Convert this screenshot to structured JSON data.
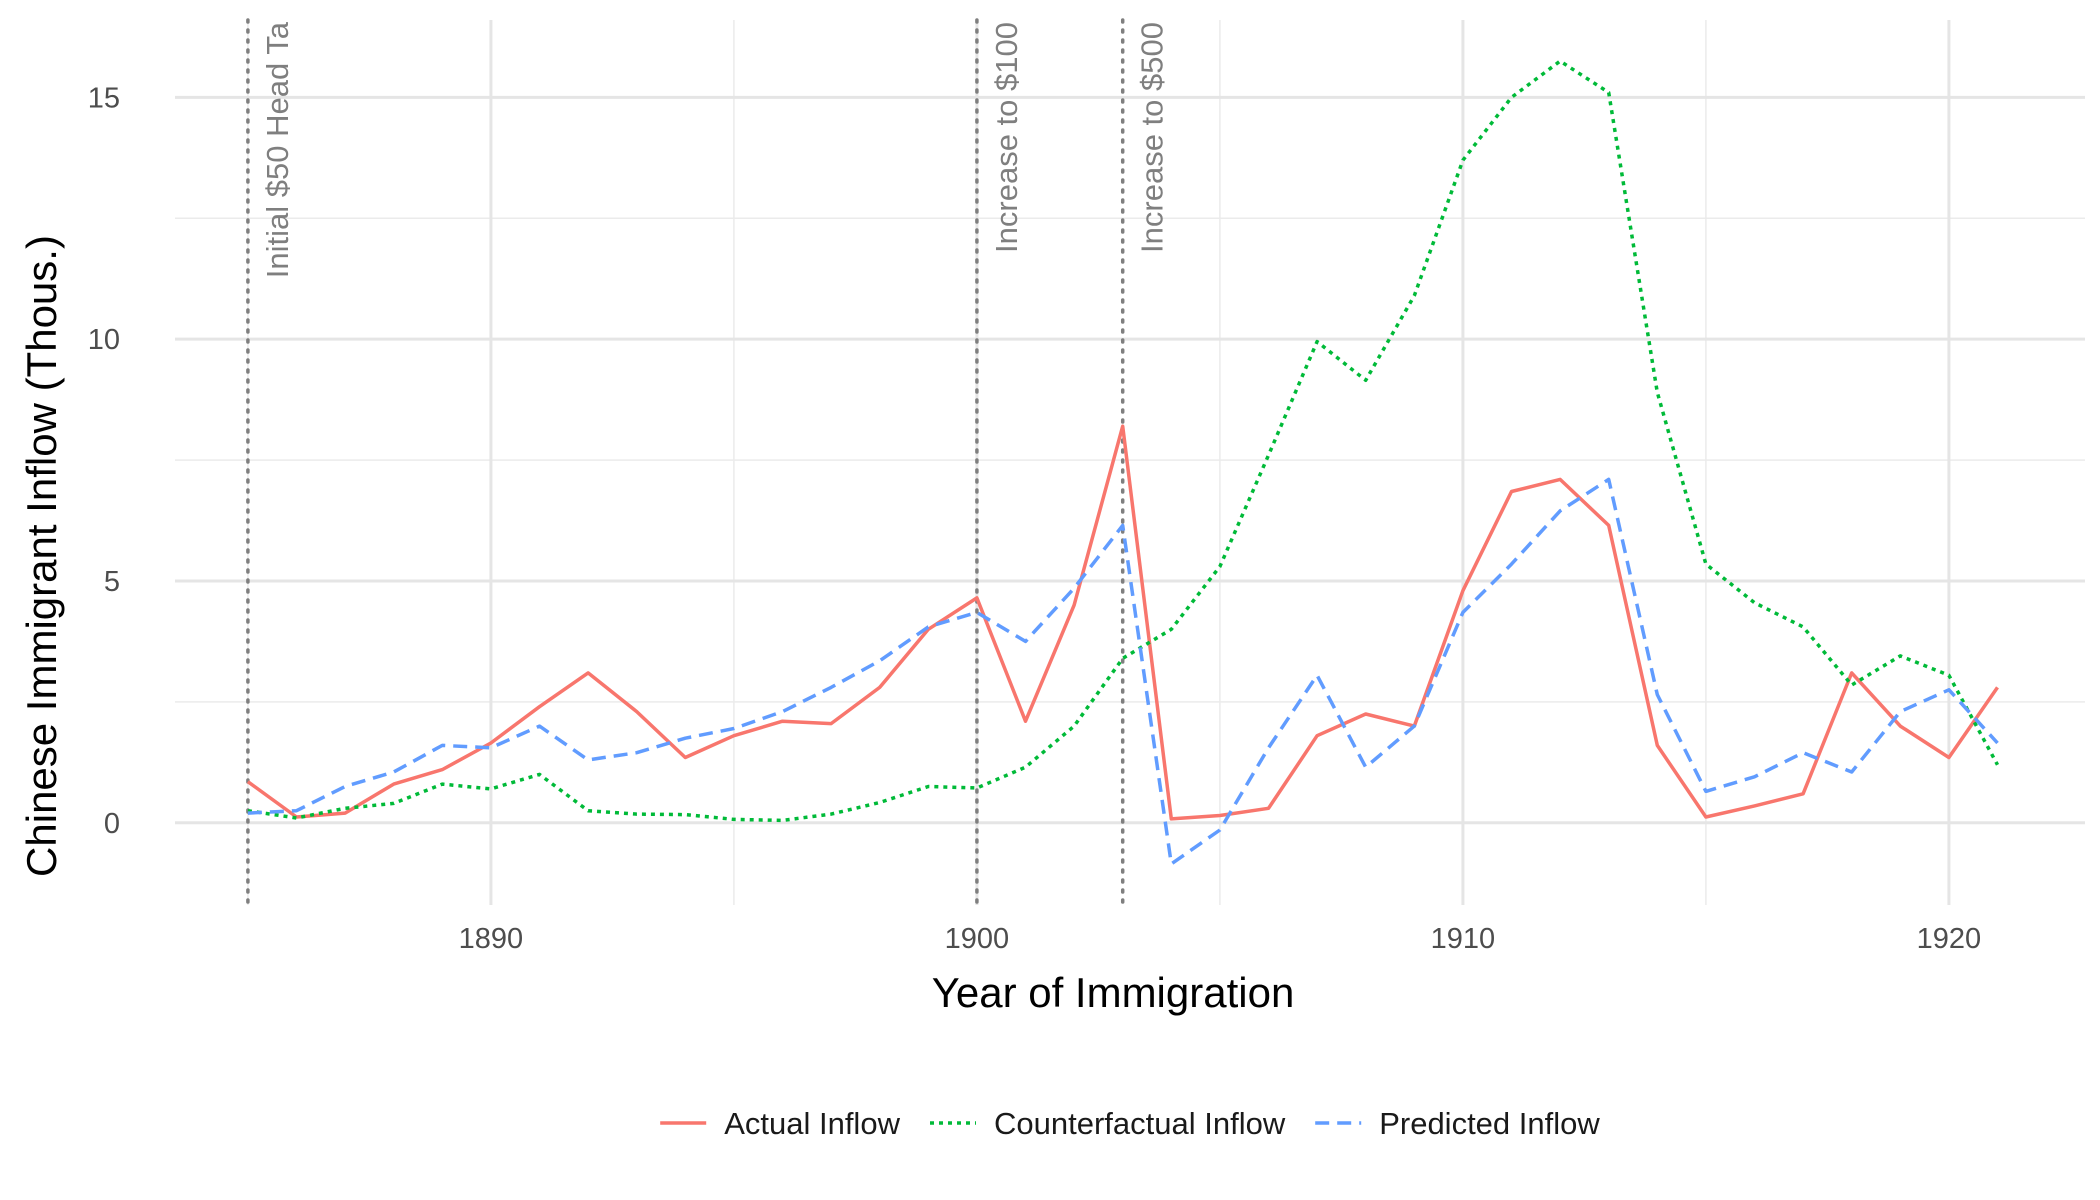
{
  "chart_data": {
    "type": "line",
    "title": "",
    "xlabel": "Year of Immigration",
    "ylabel": "Chinese Immigrant Inflow (Thous.)",
    "xlim": [
      1883.5,
      1922.8
    ],
    "ylim": [
      -1.7,
      16.6
    ],
    "x_ticks": [
      1890,
      1900,
      1910,
      1920
    ],
    "x_minor_ticks": [
      1885,
      1895,
      1905,
      1915
    ],
    "y_ticks": [
      0,
      5,
      10,
      15
    ],
    "y_minor_ticks": [
      2.5,
      7.5,
      12.5
    ],
    "grid": true,
    "legend_position": "bottom",
    "x": [
      1885,
      1886,
      1887,
      1888,
      1889,
      1890,
      1891,
      1892,
      1893,
      1894,
      1895,
      1896,
      1897,
      1898,
      1899,
      1900,
      1901,
      1902,
      1903,
      1904,
      1905,
      1906,
      1907,
      1908,
      1909,
      1910,
      1911,
      1912,
      1913,
      1914,
      1915,
      1916,
      1917,
      1918,
      1919,
      1920,
      1921
    ],
    "series": [
      {
        "name": "Actual Inflow",
        "color": "#F8766D",
        "dash": "solid",
        "values": [
          0.85,
          0.12,
          0.2,
          0.8,
          1.1,
          1.65,
          2.4,
          3.1,
          2.3,
          1.35,
          1.8,
          2.1,
          2.05,
          2.8,
          4.0,
          4.65,
          2.1,
          4.5,
          8.2,
          0.08,
          0.15,
          0.3,
          1.8,
          2.25,
          2.0,
          4.8,
          6.85,
          7.1,
          6.15,
          1.6,
          0.12,
          0.35,
          0.6,
          3.1,
          2.0,
          1.35,
          2.8
        ]
      },
      {
        "name": "Counterfactual Inflow",
        "color": "#00BA38",
        "dash": "dotted",
        "values": [
          0.25,
          0.1,
          0.3,
          0.4,
          0.8,
          0.7,
          1.0,
          0.25,
          0.18,
          0.17,
          0.07,
          0.05,
          0.18,
          0.42,
          0.75,
          0.72,
          1.15,
          2.0,
          3.4,
          4.0,
          5.3,
          7.6,
          9.95,
          9.15,
          10.9,
          13.7,
          15.0,
          15.75,
          15.1,
          8.9,
          5.35,
          4.55,
          4.05,
          2.85,
          3.45,
          3.05,
          1.2
        ]
      },
      {
        "name": "Predicted Inflow",
        "color": "#619CFF",
        "dash": "dashed",
        "values": [
          0.2,
          0.25,
          0.75,
          1.05,
          1.6,
          1.55,
          2.0,
          1.3,
          1.45,
          1.75,
          1.95,
          2.3,
          2.8,
          3.35,
          4.05,
          4.35,
          3.75,
          4.85,
          6.15,
          -0.85,
          -0.15,
          1.55,
          3.05,
          1.15,
          2.0,
          4.35,
          5.35,
          6.45,
          7.1,
          2.65,
          0.65,
          0.95,
          1.45,
          1.05,
          2.3,
          2.75,
          1.65
        ]
      }
    ],
    "annotations": [
      {
        "x": 1885,
        "label": "Initial $50 Head Ta"
      },
      {
        "x": 1900,
        "label": "Increase to $100"
      },
      {
        "x": 1903,
        "label": "Increase to $500"
      }
    ]
  }
}
